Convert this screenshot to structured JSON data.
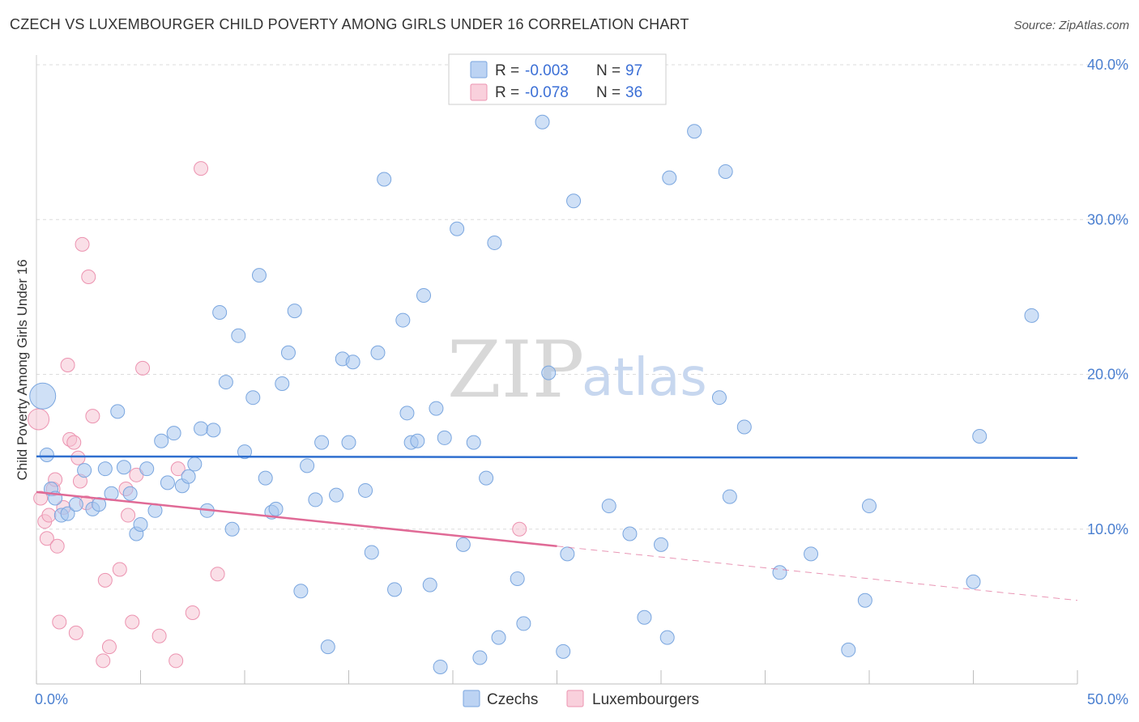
{
  "title": "CZECH VS LUXEMBOURGER CHILD POVERTY AMONG GIRLS UNDER 16 CORRELATION CHART",
  "source": "Source: ZipAtlas.com",
  "watermark": {
    "zip": "ZIP",
    "atlas": "atlas"
  },
  "legend": {
    "rows": [
      {
        "r_label": "R =",
        "r_value": "-0.003",
        "n_label": "N =",
        "n_value": "97"
      },
      {
        "r_label": "R =",
        "r_value": "-0.078",
        "n_label": "N =",
        "n_value": "36"
      }
    ]
  },
  "bottom_legend": [
    "Czechs",
    "Luxembourgers"
  ],
  "colors": {
    "czech_fill": "#a8c7ef",
    "czech_stroke": "#7aa6df",
    "czech_line": "#2f6fcf",
    "lux_fill": "#f6bfd0",
    "lux_stroke": "#ec93b0",
    "lux_line": "#e06a96",
    "grid": "#dcdcdc",
    "tick_text": "#4a7fd0"
  },
  "chart_data": {
    "type": "scatter",
    "title": "CZECH VS LUXEMBOURGER CHILD POVERTY AMONG GIRLS UNDER 16 CORRELATION CHART",
    "xlabel": "",
    "ylabel": "Child Poverty Among Girls Under 16",
    "xlim": [
      0,
      50
    ],
    "ylim": [
      0,
      40
    ],
    "x_tick_labels": [
      "0.0%",
      "50.0%"
    ],
    "y_ticks": [
      10,
      20,
      30,
      40
    ],
    "y_tick_labels": [
      "10.0%",
      "20.0%",
      "30.0%",
      "40.0%"
    ],
    "grid": true,
    "legend_position": "top-center",
    "series": [
      {
        "name": "Czechs",
        "r": -0.003,
        "n": 97,
        "trend": {
          "x": [
            0,
            50
          ],
          "y": [
            14.7,
            14.6
          ]
        },
        "points": [
          {
            "x": 0.3,
            "y": 18.6,
            "big": true
          },
          {
            "x": 0.5,
            "y": 14.8
          },
          {
            "x": 0.7,
            "y": 12.6
          },
          {
            "x": 0.9,
            "y": 12.0
          },
          {
            "x": 1.2,
            "y": 10.9
          },
          {
            "x": 1.5,
            "y": 11.0
          },
          {
            "x": 1.9,
            "y": 11.6
          },
          {
            "x": 2.3,
            "y": 13.8
          },
          {
            "x": 2.7,
            "y": 11.3
          },
          {
            "x": 3.0,
            "y": 11.6
          },
          {
            "x": 3.3,
            "y": 13.9
          },
          {
            "x": 3.6,
            "y": 12.3
          },
          {
            "x": 3.9,
            "y": 17.6
          },
          {
            "x": 4.2,
            "y": 14.0
          },
          {
            "x": 4.5,
            "y": 12.3
          },
          {
            "x": 4.8,
            "y": 9.7
          },
          {
            "x": 5.0,
            "y": 10.3
          },
          {
            "x": 5.3,
            "y": 13.9
          },
          {
            "x": 5.7,
            "y": 11.2
          },
          {
            "x": 6.0,
            "y": 15.7
          },
          {
            "x": 6.3,
            "y": 13.0
          },
          {
            "x": 6.6,
            "y": 16.2
          },
          {
            "x": 7.0,
            "y": 12.8
          },
          {
            "x": 7.3,
            "y": 13.4
          },
          {
            "x": 7.6,
            "y": 14.2
          },
          {
            "x": 7.9,
            "y": 16.5
          },
          {
            "x": 8.2,
            "y": 11.2
          },
          {
            "x": 8.5,
            "y": 16.4
          },
          {
            "x": 8.8,
            "y": 24.0
          },
          {
            "x": 9.1,
            "y": 19.5
          },
          {
            "x": 9.4,
            "y": 10.0
          },
          {
            "x": 9.7,
            "y": 22.5
          },
          {
            "x": 10.0,
            "y": 15.0
          },
          {
            "x": 10.4,
            "y": 18.5
          },
          {
            "x": 10.7,
            "y": 26.4
          },
          {
            "x": 11.0,
            "y": 13.3
          },
          {
            "x": 11.3,
            "y": 11.1
          },
          {
            "x": 11.5,
            "y": 11.3
          },
          {
            "x": 11.8,
            "y": 19.4
          },
          {
            "x": 12.1,
            "y": 21.4
          },
          {
            "x": 12.4,
            "y": 24.1
          },
          {
            "x": 12.7,
            "y": 6.0
          },
          {
            "x": 13.0,
            "y": 14.1
          },
          {
            "x": 13.4,
            "y": 11.9
          },
          {
            "x": 13.7,
            "y": 15.6
          },
          {
            "x": 14.0,
            "y": 2.4
          },
          {
            "x": 14.4,
            "y": 12.2
          },
          {
            "x": 14.7,
            "y": 21.0
          },
          {
            "x": 15.0,
            "y": 15.6
          },
          {
            "x": 15.2,
            "y": 20.8
          },
          {
            "x": 15.8,
            "y": 12.5
          },
          {
            "x": 16.1,
            "y": 8.5
          },
          {
            "x": 16.4,
            "y": 21.4
          },
          {
            "x": 16.7,
            "y": 32.6
          },
          {
            "x": 17.2,
            "y": 6.1
          },
          {
            "x": 17.6,
            "y": 23.5
          },
          {
            "x": 17.8,
            "y": 17.5
          },
          {
            "x": 18.0,
            "y": 15.6
          },
          {
            "x": 18.3,
            "y": 15.7
          },
          {
            "x": 18.6,
            "y": 25.1
          },
          {
            "x": 18.9,
            "y": 6.4
          },
          {
            "x": 19.2,
            "y": 17.8
          },
          {
            "x": 19.4,
            "y": 1.1
          },
          {
            "x": 19.6,
            "y": 15.9
          },
          {
            "x": 20.2,
            "y": 29.4
          },
          {
            "x": 20.5,
            "y": 9.0
          },
          {
            "x": 21.0,
            "y": 15.6
          },
          {
            "x": 21.3,
            "y": 1.7
          },
          {
            "x": 21.6,
            "y": 13.3
          },
          {
            "x": 22.0,
            "y": 28.5
          },
          {
            "x": 22.2,
            "y": 3.0
          },
          {
            "x": 23.1,
            "y": 6.8
          },
          {
            "x": 23.4,
            "y": 3.9
          },
          {
            "x": 24.3,
            "y": 36.3
          },
          {
            "x": 24.6,
            "y": 20.1
          },
          {
            "x": 25.3,
            "y": 2.1
          },
          {
            "x": 25.5,
            "y": 8.4
          },
          {
            "x": 25.8,
            "y": 31.2
          },
          {
            "x": 27.5,
            "y": 11.5
          },
          {
            "x": 28.5,
            "y": 9.7
          },
          {
            "x": 29.2,
            "y": 4.3
          },
          {
            "x": 30.0,
            "y": 9.0
          },
          {
            "x": 30.3,
            "y": 3.0
          },
          {
            "x": 30.4,
            "y": 32.7
          },
          {
            "x": 31.6,
            "y": 35.7
          },
          {
            "x": 32.8,
            "y": 18.5
          },
          {
            "x": 33.1,
            "y": 33.1
          },
          {
            "x": 33.3,
            "y": 12.1
          },
          {
            "x": 34.0,
            "y": 16.6
          },
          {
            "x": 35.7,
            "y": 7.2
          },
          {
            "x": 37.2,
            "y": 8.4
          },
          {
            "x": 39.0,
            "y": 2.2
          },
          {
            "x": 39.8,
            "y": 5.4
          },
          {
            "x": 40.0,
            "y": 11.5
          },
          {
            "x": 45.0,
            "y": 6.6
          },
          {
            "x": 45.3,
            "y": 16.0
          },
          {
            "x": 47.8,
            "y": 23.8
          }
        ]
      },
      {
        "name": "Luxembourgers",
        "r": -0.078,
        "n": 36,
        "trend": {
          "x": [
            0,
            25
          ],
          "y": [
            12.4,
            8.9
          ]
        },
        "trend_dashed": {
          "x": [
            25,
            50
          ],
          "y": [
            8.9,
            5.4
          ]
        },
        "points": [
          {
            "x": 0.1,
            "y": 17.1,
            "big": true
          },
          {
            "x": 0.2,
            "y": 12.0
          },
          {
            "x": 0.4,
            "y": 10.5
          },
          {
            "x": 0.5,
            "y": 9.4
          },
          {
            "x": 0.6,
            "y": 10.9
          },
          {
            "x": 0.8,
            "y": 12.6
          },
          {
            "x": 0.9,
            "y": 13.2
          },
          {
            "x": 1.0,
            "y": 8.9
          },
          {
            "x": 1.1,
            "y": 4.0
          },
          {
            "x": 1.3,
            "y": 11.4
          },
          {
            "x": 1.5,
            "y": 20.6
          },
          {
            "x": 1.6,
            "y": 15.8
          },
          {
            "x": 1.8,
            "y": 15.6
          },
          {
            "x": 1.9,
            "y": 3.3
          },
          {
            "x": 2.0,
            "y": 14.6
          },
          {
            "x": 2.1,
            "y": 13.1
          },
          {
            "x": 2.2,
            "y": 28.4
          },
          {
            "x": 2.4,
            "y": 11.7
          },
          {
            "x": 2.5,
            "y": 26.3
          },
          {
            "x": 2.7,
            "y": 17.3
          },
          {
            "x": 3.2,
            "y": 1.5
          },
          {
            "x": 3.3,
            "y": 6.7
          },
          {
            "x": 3.5,
            "y": 2.4
          },
          {
            "x": 4.0,
            "y": 7.4
          },
          {
            "x": 4.3,
            "y": 12.6
          },
          {
            "x": 4.4,
            "y": 10.9
          },
          {
            "x": 4.6,
            "y": 4.0
          },
          {
            "x": 4.8,
            "y": 13.5
          },
          {
            "x": 5.1,
            "y": 20.4
          },
          {
            "x": 5.9,
            "y": 3.1
          },
          {
            "x": 6.7,
            "y": 1.5
          },
          {
            "x": 6.8,
            "y": 13.9
          },
          {
            "x": 7.5,
            "y": 4.6
          },
          {
            "x": 7.9,
            "y": 33.3
          },
          {
            "x": 8.7,
            "y": 7.1
          },
          {
            "x": 23.2,
            "y": 10.0
          }
        ]
      }
    ]
  }
}
